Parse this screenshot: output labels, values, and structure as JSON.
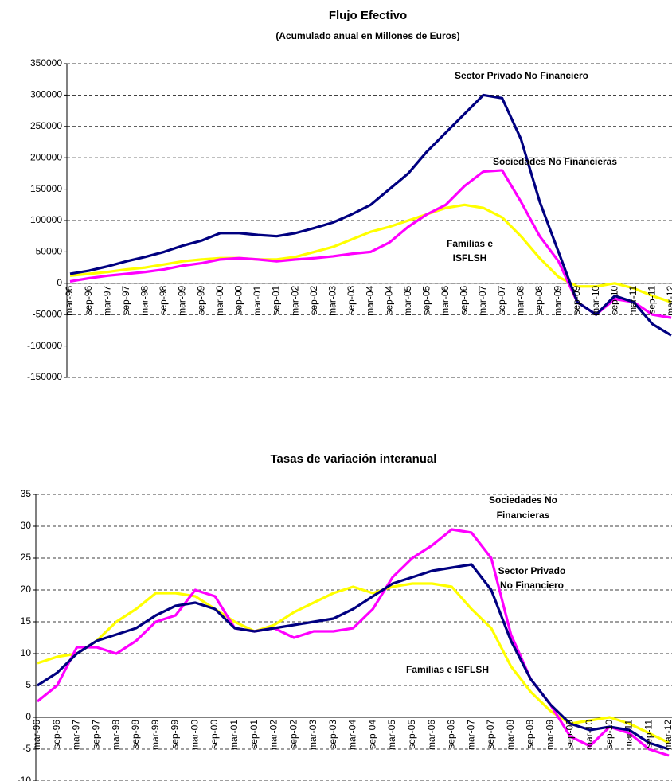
{
  "chart_data": [
    {
      "type": "line",
      "title": "Flujo Efectivo",
      "subtitle": "(Acumulado anual en Millones de Euros)",
      "categories": [
        "mar-96",
        "sep-96",
        "mar-97",
        "sep-97",
        "mar-98",
        "sep-98",
        "mar-99",
        "sep-99",
        "mar-00",
        "sep-00",
        "mar-01",
        "sep-01",
        "mar-02",
        "sep-02",
        "mar-03",
        "sep-03",
        "mar-04",
        "sep-04",
        "mar-05",
        "sep-05",
        "mar-06",
        "sep-06",
        "mar-07",
        "sep-07",
        "mar-08",
        "sep-08",
        "mar-09",
        "sep-09",
        "mar-10",
        "sep-10",
        "mar-11",
        "sep-11",
        "mar-12"
      ],
      "series": [
        {
          "name": "Familias e ISFLSH",
          "color": "#ffff00",
          "values": [
            12000,
            15000,
            18000,
            22000,
            25000,
            30000,
            35000,
            38000,
            40000,
            40000,
            38000,
            38000,
            42000,
            50000,
            58000,
            70000,
            82000,
            90000,
            100000,
            110000,
            120000,
            125000,
            120000,
            105000,
            75000,
            40000,
            10000,
            -5000,
            -5000,
            0,
            -8000,
            -20000,
            -30000
          ]
        },
        {
          "name": "Sociedades No Financieras",
          "color": "#ff00ff",
          "values": [
            3000,
            8000,
            12000,
            15000,
            18000,
            22000,
            28000,
            32000,
            38000,
            40000,
            38000,
            35000,
            38000,
            40000,
            43000,
            47000,
            50000,
            65000,
            90000,
            110000,
            125000,
            155000,
            178000,
            180000,
            130000,
            75000,
            35000,
            -30000,
            -50000,
            -25000,
            -30000,
            -50000,
            -55000
          ]
        },
        {
          "name": "Sector Privado No Financiero",
          "color": "#000080",
          "values": [
            15000,
            20000,
            27000,
            35000,
            42000,
            50000,
            60000,
            68000,
            80000,
            80000,
            77000,
            75000,
            80000,
            88000,
            97000,
            110000,
            125000,
            150000,
            175000,
            210000,
            240000,
            270000,
            300000,
            295000,
            230000,
            130000,
            50000,
            -30000,
            -50000,
            -20000,
            -30000,
            -65000,
            -83000
          ]
        }
      ],
      "annotations": [
        "Sector Privado No Financiero",
        "Sociedades No Financieras",
        "Familias e",
        "ISFLSH"
      ],
      "ylim": [
        -150000,
        350000
      ],
      "yticks": [
        -150000,
        -100000,
        -50000,
        0,
        50000,
        100000,
        150000,
        200000,
        250000,
        300000,
        350000
      ],
      "grid": true
    },
    {
      "type": "line",
      "title": "Tasas de variación interanual",
      "categories": [
        "mar-96",
        "sep-96",
        "mar-97",
        "sep-97",
        "mar-98",
        "sep-98",
        "mar-99",
        "sep-99",
        "mar-00",
        "sep-00",
        "mar-01",
        "sep-01",
        "mar-02",
        "sep-02",
        "mar-03",
        "sep-03",
        "mar-04",
        "sep-04",
        "mar-05",
        "sep-05",
        "mar-06",
        "sep-06",
        "mar-07",
        "sep-07",
        "mar-08",
        "sep-08",
        "mar-09",
        "sep-09",
        "mar-10",
        "sep-10",
        "mar-11",
        "sep-11",
        "mar-12"
      ],
      "series": [
        {
          "name": "Familias e ISFLSH",
          "color": "#ffff00",
          "values": [
            8.5,
            9.5,
            10,
            12,
            15,
            17,
            19.5,
            19.5,
            19,
            17,
            15,
            13.5,
            14.5,
            16.5,
            18,
            19.5,
            20.5,
            19.5,
            20.5,
            21,
            21,
            20.5,
            17,
            14,
            8,
            4,
            1,
            -1,
            -0.5,
            0,
            -1,
            -2.5,
            -4
          ]
        },
        {
          "name": "Sociedades No Financieras",
          "color": "#ff00ff",
          "values": [
            2.5,
            5,
            11,
            11,
            10,
            12,
            15,
            16,
            20,
            19,
            14,
            13.5,
            14,
            12.5,
            13.5,
            13.5,
            14,
            17,
            22,
            25,
            27,
            29.5,
            29,
            25,
            13,
            6,
            2,
            -3,
            -4.5,
            -1.5,
            -2.5,
            -5,
            -6
          ]
        },
        {
          "name": "Sector Privado No Financiero",
          "color": "#000080",
          "values": [
            5,
            7,
            10,
            12,
            13,
            14,
            16,
            17.5,
            18,
            17,
            14,
            13.5,
            14,
            14.5,
            15,
            15.5,
            17,
            19,
            21,
            22,
            23,
            23.5,
            24,
            20,
            12,
            6,
            2,
            -1,
            -2,
            -1.5,
            -2,
            -4,
            -5
          ]
        }
      ],
      "annotations": [
        "Sociedades No",
        "Financieras",
        "Sector Privado",
        "No Financiero",
        "Familias e ISFLSH"
      ],
      "ylim": [
        -10,
        35
      ],
      "yticks": [
        -10,
        -5,
        0,
        5,
        10,
        15,
        20,
        25,
        30,
        35
      ],
      "grid": true
    }
  ]
}
